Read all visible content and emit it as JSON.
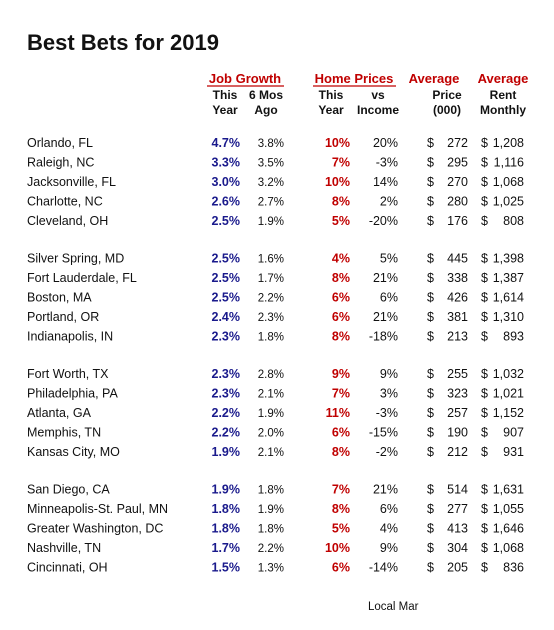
{
  "header": {
    "title": "Best Bets for 2019"
  },
  "table": {
    "groups": [
      "Job Growth",
      "Home Prices",
      "Average",
      "Average"
    ],
    "columns": [
      [
        "This",
        "Year"
      ],
      [
        "6 Mos",
        "Ago"
      ],
      [
        "This",
        "Year"
      ],
      [
        "vs",
        "Income"
      ],
      [
        "Price",
        "(000)"
      ],
      [
        "Rent",
        "Monthly"
      ]
    ],
    "currency": "$",
    "rows": [
      [
        "Orlando, FL",
        "4.7%",
        "3.8%",
        "10%",
        "20%",
        "272",
        "1,208"
      ],
      [
        "Raleigh, NC",
        "3.3%",
        "3.5%",
        "7%",
        "-3%",
        "295",
        "1,116"
      ],
      [
        "Jacksonville, FL",
        "3.0%",
        "3.2%",
        "10%",
        "14%",
        "270",
        "1,068"
      ],
      [
        "Charlotte, NC",
        "2.6%",
        "2.7%",
        "8%",
        "2%",
        "280",
        "1,025"
      ],
      [
        "Cleveland, OH",
        "2.5%",
        "1.9%",
        "5%",
        "-20%",
        "176",
        "808"
      ],
      [
        "Silver Spring, MD",
        "2.5%",
        "1.6%",
        "4%",
        "5%",
        "445",
        "1,398"
      ],
      [
        "Fort Lauderdale, FL",
        "2.5%",
        "1.7%",
        "8%",
        "21%",
        "338",
        "1,387"
      ],
      [
        "Boston, MA",
        "2.5%",
        "2.2%",
        "6%",
        "6%",
        "426",
        "1,614"
      ],
      [
        "Portland, OR",
        "2.4%",
        "2.3%",
        "6%",
        "21%",
        "381",
        "1,310"
      ],
      [
        "Indianapolis, IN",
        "2.3%",
        "1.8%",
        "8%",
        "-18%",
        "213",
        "893"
      ],
      [
        "Fort Worth, TX",
        "2.3%",
        "2.8%",
        "9%",
        "9%",
        "255",
        "1,032"
      ],
      [
        "Philadelphia, PA",
        "2.3%",
        "2.1%",
        "7%",
        "3%",
        "323",
        "1,021"
      ],
      [
        "Atlanta, GA",
        "2.2%",
        "1.9%",
        "11%",
        "-3%",
        "257",
        "1,152"
      ],
      [
        "Memphis, TN",
        "2.2%",
        "2.0%",
        "6%",
        "-15%",
        "190",
        "907"
      ],
      [
        "Kansas City, MO",
        "1.9%",
        "2.1%",
        "8%",
        "-2%",
        "212",
        "931"
      ],
      [
        "San Diego, CA",
        "1.9%",
        "1.8%",
        "7%",
        "21%",
        "514",
        "1,631"
      ],
      [
        "Minneapolis-St. Paul, MN",
        "1.8%",
        "1.9%",
        "8%",
        "6%",
        "277",
        "1,055"
      ],
      [
        "Greater Washington, DC",
        "1.8%",
        "1.8%",
        "5%",
        "4%",
        "413",
        "1,646"
      ],
      [
        "Nashville, TN",
        "1.7%",
        "2.2%",
        "10%",
        "9%",
        "304",
        "1,068"
      ],
      [
        "Cincinnati, OH",
        "1.5%",
        "1.3%",
        "6%",
        "-14%",
        "205",
        "836"
      ]
    ]
  },
  "footer": {
    "source": "Local Mar"
  }
}
